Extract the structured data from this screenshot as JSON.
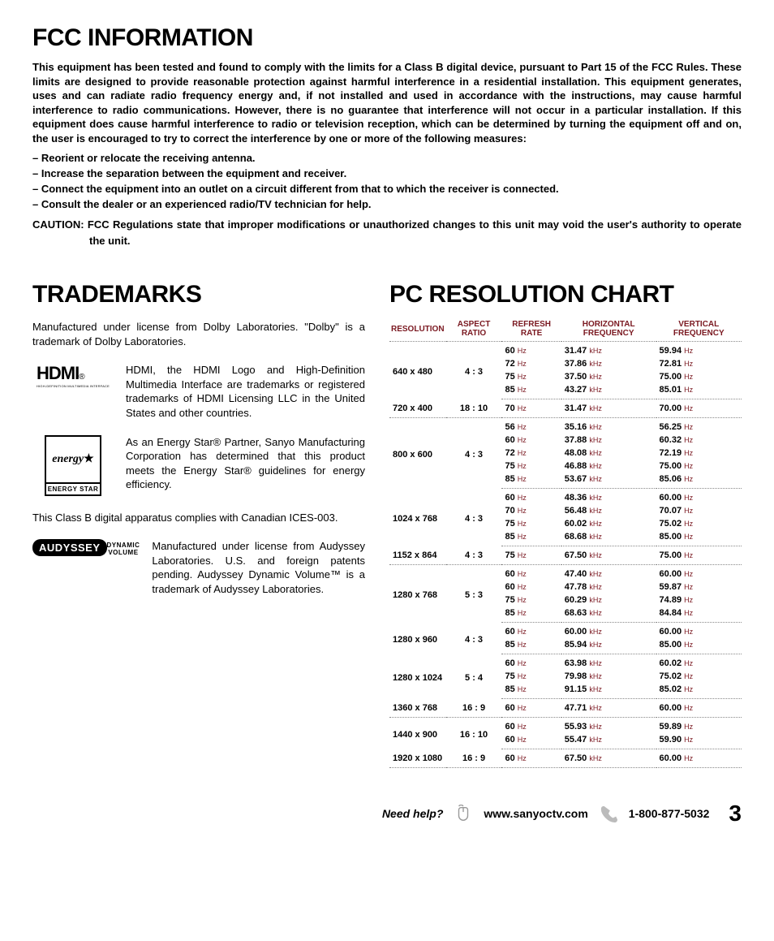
{
  "headings": {
    "fcc": "FCC INFORMATION",
    "trademarks": "TRADEMARKS",
    "pcchart": "PC RESOLUTION CHART"
  },
  "fcc": {
    "intro": "This equipment has been tested and found to comply with the limits for a Class B digital device, pursuant to Part 15 of the FCC Rules.  These limits are designed to provide reasonable protection against harmful interference in a residential installation.  This equipment generates, uses and can radiate radio frequency energy and, if not installed and used in accordance with the instructions, may cause harmful interference to radio communications.  However, there is no guarantee that interference will not occur in a particular installation.  If this equipment does cause harmful interference to radio or television reception, which can be determined by turning the equipment off and on, the user is encouraged to try to correct the interference by one or more of the following  measures:",
    "bullets": [
      "– Reorient or relocate the receiving antenna.",
      "– Increase the separation between the equipment and receiver.",
      "– Connect the equipment into an outlet on a circuit different from that to which the receiver is connected.",
      "– Consult the dealer or an experienced radio/TV technician for help."
    ],
    "caution_label": "CAUTION:",
    "caution_body": " FCC Regulations state that improper modifications or unauthorized changes to this unit may void the user's authority to operate the unit."
  },
  "trademarks": {
    "dolby": "Manufactured under license from Dolby Laboratories. \"Dolby\" is a trademark of Dolby Laboratories.",
    "hdmi_logo_main": "HDMI",
    "hdmi_logo_sub": "HIGH-DEFINITION MULTIMEDIA INTERFACE",
    "hdmi": "HDMI, the HDMI Logo and High-Definition Multimedia Interface are trademarks or registered trademarks of HDMI Licensing LLC in the United States and other countries.",
    "estar_logo_script": "energy",
    "estar_logo_label": "ENERGY STAR",
    "estar": "As an Energy Star® Partner, Sanyo Manufacturing Corporation has determined that this product meets the Energy Star® guidelines for energy efficiency.",
    "ices": "This Class B digital apparatus complies with Canadian ICES-003.",
    "audyssey_logo_top": "AUDYSSEY",
    "audyssey_logo_bot": "DYNAMIC VOLUME",
    "audyssey": "Manufactured under license from Audyssey Laboratories. U.S. and foreign patents pending. Audyssey Dynamic Volume™ is a trademark of Audyssey Laboratories."
  },
  "chart": {
    "headers": {
      "resolution": "RESOLUTION",
      "aspect": "ASPECT\nRATIO",
      "refresh": "REFRESH\nRATE",
      "hfreq": "HORIZONTAL\nFREQUENCY",
      "vfreq": "VERTICAL\nFREQUENCY"
    },
    "units": {
      "hz": "Hz",
      "khz": "kHz"
    },
    "header_color": "#7a1820",
    "unit_color": "#7a1820",
    "groups": [
      {
        "resolution": "640 x 480",
        "aspect": "4 : 3",
        "rows": [
          {
            "refresh": "60",
            "h": "31.47",
            "v": "59.94"
          },
          {
            "refresh": "72",
            "h": "37.86",
            "v": "72.81"
          },
          {
            "refresh": "75",
            "h": "37.50",
            "v": "75.00"
          },
          {
            "refresh": "85",
            "h": "43.27",
            "v": "85.01"
          }
        ]
      },
      {
        "resolution": "720 x 400",
        "aspect": "18 : 10",
        "rows": [
          {
            "refresh": "70",
            "h": "31.47",
            "v": "70.00"
          }
        ]
      },
      {
        "resolution": "800 x 600",
        "aspect": "4 : 3",
        "rows": [
          {
            "refresh": "56",
            "h": "35.16",
            "v": "56.25"
          },
          {
            "refresh": "60",
            "h": "37.88",
            "v": "60.32"
          },
          {
            "refresh": "72",
            "h": "48.08",
            "v": "72.19"
          },
          {
            "refresh": "75",
            "h": "46.88",
            "v": "75.00"
          },
          {
            "refresh": "85",
            "h": "53.67",
            "v": "85.06"
          }
        ]
      },
      {
        "resolution": "1024 x 768",
        "aspect": "4 : 3",
        "rows": [
          {
            "refresh": "60",
            "h": "48.36",
            "v": "60.00"
          },
          {
            "refresh": "70",
            "h": "56.48",
            "v": "70.07"
          },
          {
            "refresh": "75",
            "h": "60.02",
            "v": "75.02"
          },
          {
            "refresh": "85",
            "h": "68.68",
            "v": "85.00"
          }
        ]
      },
      {
        "resolution": "1152 x 864",
        "aspect": "4 : 3",
        "rows": [
          {
            "refresh": "75",
            "h": "67.50",
            "v": "75.00"
          }
        ]
      },
      {
        "resolution": "1280 x 768",
        "aspect": "5 : 3",
        "rows": [
          {
            "refresh": "60",
            "h": "47.40",
            "v": "60.00"
          },
          {
            "refresh": "60",
            "h": "47.78",
            "v": "59.87"
          },
          {
            "refresh": "75",
            "h": "60.29",
            "v": "74.89"
          },
          {
            "refresh": "85",
            "h": "68.63",
            "v": "84.84"
          }
        ]
      },
      {
        "resolution": "1280 x 960",
        "aspect": "4 : 3",
        "rows": [
          {
            "refresh": "60",
            "h": "60.00",
            "v": "60.00"
          },
          {
            "refresh": "85",
            "h": "85.94",
            "v": "85.00"
          }
        ]
      },
      {
        "resolution": "1280 x 1024",
        "aspect": "5 : 4",
        "rows": [
          {
            "refresh": "60",
            "h": "63.98",
            "v": "60.02"
          },
          {
            "refresh": "75",
            "h": "79.98",
            "v": "75.02"
          },
          {
            "refresh": "85",
            "h": "91.15",
            "v": "85.02"
          }
        ]
      },
      {
        "resolution": "1360 x 768",
        "aspect": "16 : 9",
        "rows": [
          {
            "refresh": "60",
            "h": "47.71",
            "v": "60.00"
          }
        ]
      },
      {
        "resolution": "1440 x 900",
        "aspect": "16 : 10",
        "rows": [
          {
            "refresh": "60",
            "h": "55.93",
            "v": "59.89"
          },
          {
            "refresh": "60",
            "h": "55.47",
            "v": "59.90"
          }
        ]
      },
      {
        "resolution": "1920 x 1080",
        "aspect": "16 : 9",
        "rows": [
          {
            "refresh": "60",
            "h": "67.50",
            "v": "60.00"
          }
        ]
      }
    ]
  },
  "footer": {
    "need": "Need help?",
    "site": "www.sanyoctv.com",
    "phone": "1-800-877-5032",
    "page": "3"
  }
}
